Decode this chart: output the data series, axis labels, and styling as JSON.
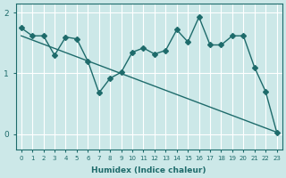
{
  "xlabel": "Humidex (Indice chaleur)",
  "background_color": "#cce8e8",
  "line_color": "#1e6b6b",
  "grid_color": "#ffffff",
  "series1_x": [
    0,
    1,
    2,
    3,
    4,
    5,
    6,
    7,
    8,
    9,
    10,
    11,
    12,
    13,
    14,
    15,
    16,
    17,
    18,
    19,
    20,
    21,
    22,
    23
  ],
  "series1_y": [
    1.75,
    1.62,
    1.62,
    1.3,
    1.6,
    1.57,
    1.2,
    0.68,
    0.92,
    1.02,
    1.35,
    1.42,
    1.32,
    1.38,
    1.72,
    1.52,
    1.93,
    1.47,
    1.47,
    1.62,
    1.62,
    1.1,
    0.7,
    0.03
  ],
  "series2_x": [
    0,
    23
  ],
  "series2_y": [
    1.62,
    0.03
  ],
  "ylim": [
    -0.25,
    2.15
  ],
  "xlim": [
    -0.5,
    23.5
  ],
  "yticks": [
    0,
    1,
    2
  ],
  "xticks": [
    0,
    1,
    2,
    3,
    4,
    5,
    6,
    7,
    8,
    9,
    10,
    11,
    12,
    13,
    14,
    15,
    16,
    17,
    18,
    19,
    20,
    21,
    22,
    23
  ],
  "marker": "D",
  "markersize": 3.0,
  "linewidth": 1.0
}
